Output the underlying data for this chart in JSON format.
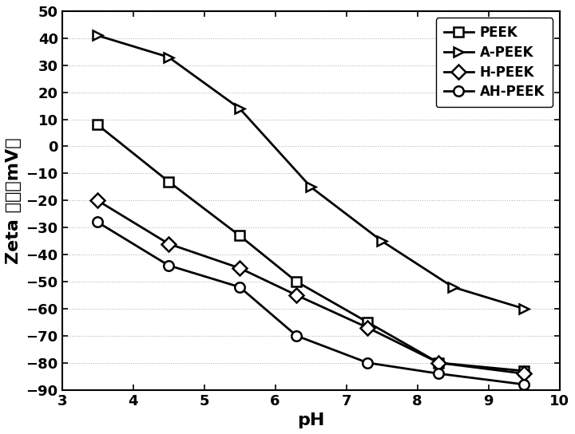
{
  "PEEK": {
    "x": [
      3.5,
      4.5,
      5.5,
      6.3,
      7.3,
      8.3,
      9.5
    ],
    "y": [
      8,
      -13,
      -33,
      -50,
      -65,
      -80,
      -83
    ],
    "marker": "s",
    "label": "PEEK",
    "markersize": 9
  },
  "A-PEEK": {
    "x": [
      3.5,
      4.5,
      5.5,
      6.5,
      7.5,
      8.5,
      9.5
    ],
    "y": [
      41,
      33,
      14,
      -15,
      -35,
      -52,
      -60
    ],
    "marker": ">",
    "label": "A-PEEK",
    "markersize": 9
  },
  "H-PEEK": {
    "x": [
      3.5,
      4.5,
      5.5,
      6.3,
      7.3,
      8.3,
      9.5
    ],
    "y": [
      -20,
      -36,
      -45,
      -55,
      -67,
      -80,
      -84
    ],
    "marker": "D",
    "label": "H-PEEK",
    "markersize": 9
  },
  "AH-PEEK": {
    "x": [
      3.5,
      4.5,
      5.5,
      6.3,
      7.3,
      8.3,
      9.5
    ],
    "y": [
      -28,
      -44,
      -52,
      -70,
      -80,
      -84,
      -88
    ],
    "marker": "o",
    "label": "AH-PEEK",
    "markersize": 9
  },
  "line_color": "#000000",
  "xlabel": "pH",
  "ylabel_part1": "Zeta ",
  "ylabel_part2": "电位",
  "ylabel_part3": "（mV）",
  "xlim": [
    3,
    10
  ],
  "ylim": [
    -90,
    50
  ],
  "xticks": [
    3,
    4,
    5,
    6,
    7,
    8,
    9,
    10
  ],
  "yticks": [
    -90,
    -80,
    -70,
    -60,
    -50,
    -40,
    -30,
    -20,
    -10,
    0,
    10,
    20,
    30,
    40,
    50
  ],
  "legend_loc": "upper right",
  "background_color": "#ffffff",
  "axis_label_fontsize": 16,
  "tick_fontsize": 13,
  "legend_fontsize": 12,
  "linewidth": 2.0,
  "markeredgewidth": 1.8
}
